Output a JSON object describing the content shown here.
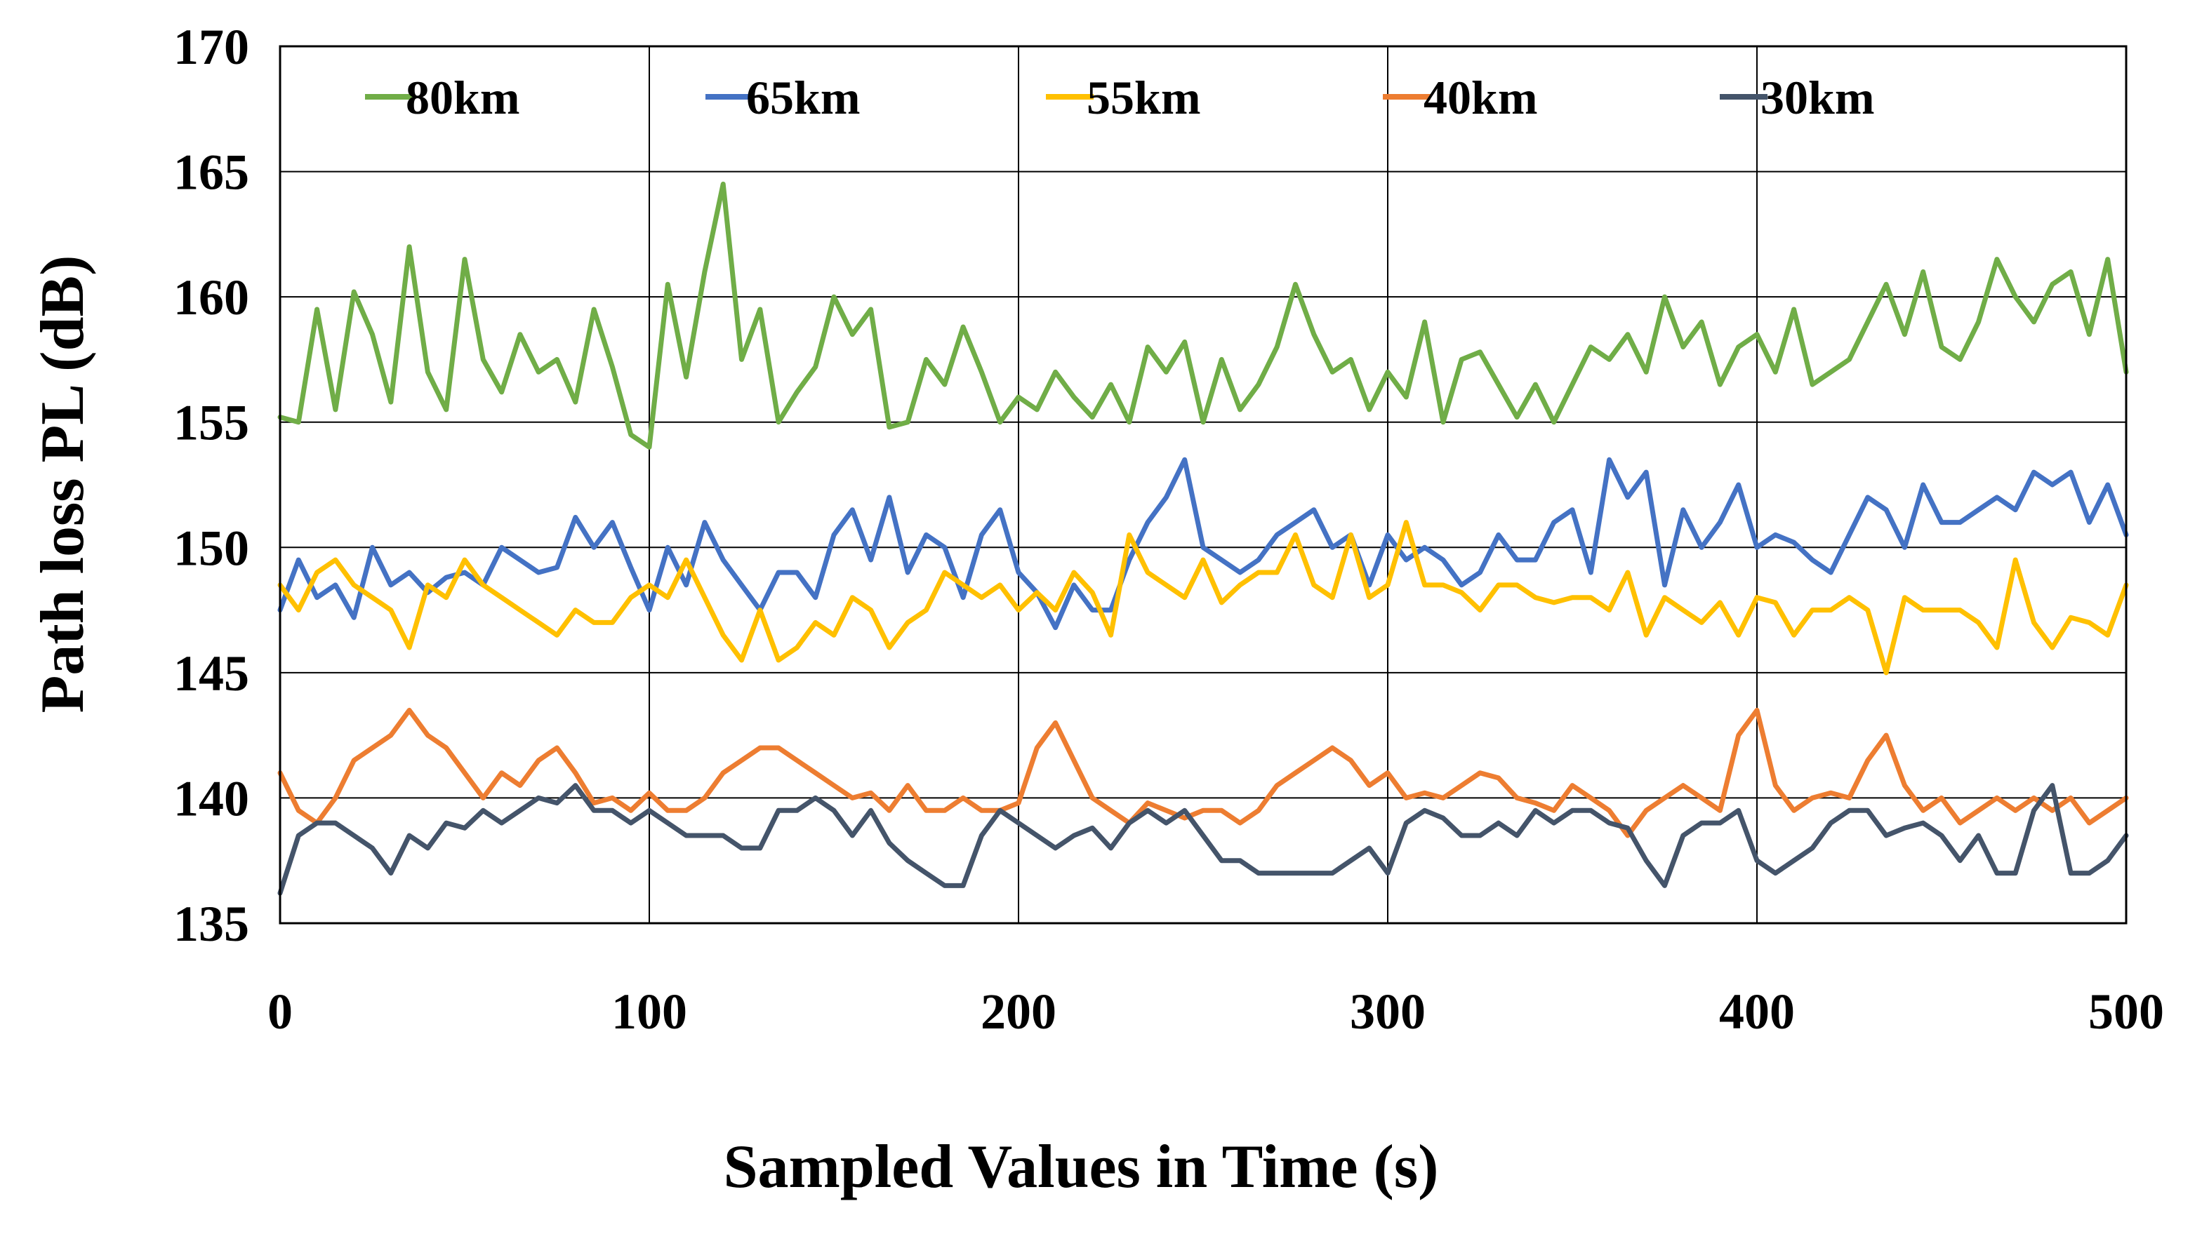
{
  "chart_data": {
    "type": "line",
    "title": "",
    "xlabel": "Sampled Values in Time (s)",
    "ylabel": "Path loss PL (dB)",
    "xlim": [
      0,
      500
    ],
    "ylim": [
      135,
      170
    ],
    "xticks": [
      0,
      100,
      200,
      300,
      400,
      500
    ],
    "yticks": [
      135,
      140,
      145,
      150,
      155,
      160,
      165,
      170
    ],
    "grid": true,
    "legend_position": "top",
    "sample_step": 5,
    "series": [
      {
        "name": "80km",
        "color": "#70AD47",
        "values": [
          155.2,
          155.0,
          159.5,
          155.5,
          160.2,
          158.5,
          155.8,
          162.0,
          157.0,
          155.5,
          161.5,
          157.5,
          156.2,
          158.5,
          157.0,
          157.5,
          155.8,
          159.5,
          157.2,
          154.5,
          154.0,
          160.5,
          156.8,
          161.0,
          164.5,
          157.5,
          159.5,
          155.0,
          156.2,
          157.2,
          160.0,
          158.5,
          159.5,
          154.8,
          155.0,
          157.5,
          156.5,
          158.8,
          157.0,
          155.0,
          156.0,
          155.5,
          157.0,
          156.0,
          155.2,
          156.5,
          155.0,
          158.0,
          157.0,
          158.2,
          155.0,
          157.5,
          155.5,
          156.5,
          158.0,
          160.5,
          158.5,
          157.0,
          157.5,
          155.5,
          157.0,
          156.0,
          159.0,
          155.0,
          157.5,
          157.8,
          156.5,
          155.2,
          156.5,
          155.0,
          156.5,
          158.0,
          157.5,
          158.5,
          157.0,
          160.0,
          158.0,
          159.0,
          156.5,
          158.0,
          158.5,
          157.0,
          159.5,
          156.5,
          157.0,
          157.5,
          159.0,
          160.5,
          158.5,
          161.0,
          158.0,
          157.5,
          159.0,
          161.5,
          160.0,
          159.0,
          160.5,
          161.0,
          158.5,
          161.5,
          157.0
        ]
      },
      {
        "name": "65km",
        "color": "#4472C4",
        "values": [
          147.5,
          149.5,
          148.0,
          148.5,
          147.2,
          150.0,
          148.5,
          149.0,
          148.2,
          148.8,
          149.0,
          148.5,
          150.0,
          149.5,
          149.0,
          149.2,
          151.2,
          150.0,
          151.0,
          149.2,
          147.5,
          150.0,
          148.5,
          151.0,
          149.5,
          148.5,
          147.5,
          149.0,
          149.0,
          148.0,
          150.5,
          151.5,
          149.5,
          152.0,
          149.0,
          150.5,
          150.0,
          148.0,
          150.5,
          151.5,
          149.0,
          148.2,
          146.8,
          148.5,
          147.5,
          147.5,
          149.5,
          151.0,
          152.0,
          153.5,
          150.0,
          149.5,
          149.0,
          149.5,
          150.5,
          151.0,
          151.5,
          150.0,
          150.5,
          148.5,
          150.5,
          149.5,
          150.0,
          149.5,
          148.5,
          149.0,
          150.5,
          149.5,
          149.5,
          151.0,
          151.5,
          149.0,
          153.5,
          152.0,
          153.0,
          148.5,
          151.5,
          150.0,
          151.0,
          152.5,
          150.0,
          150.5,
          150.2,
          149.5,
          149.0,
          150.5,
          152.0,
          151.5,
          150.0,
          152.5,
          151.0,
          151.0,
          151.5,
          152.0,
          151.5,
          153.0,
          152.5,
          153.0,
          151.0,
          152.5,
          150.5
        ]
      },
      {
        "name": "55km",
        "color": "#FFC000",
        "values": [
          148.5,
          147.5,
          149.0,
          149.5,
          148.5,
          148.0,
          147.5,
          146.0,
          148.5,
          148.0,
          149.5,
          148.5,
          148.0,
          147.5,
          147.0,
          146.5,
          147.5,
          147.0,
          147.0,
          148.0,
          148.5,
          148.0,
          149.5,
          148.0,
          146.5,
          145.5,
          147.5,
          145.5,
          146.0,
          147.0,
          146.5,
          148.0,
          147.5,
          146.0,
          147.0,
          147.5,
          149.0,
          148.5,
          148.0,
          148.5,
          147.5,
          148.2,
          147.5,
          149.0,
          148.2,
          146.5,
          150.5,
          149.0,
          148.5,
          148.0,
          149.5,
          147.8,
          148.5,
          149.0,
          149.0,
          150.5,
          148.5,
          148.0,
          150.5,
          148.0,
          148.5,
          151.0,
          148.5,
          148.5,
          148.2,
          147.5,
          148.5,
          148.5,
          148.0,
          147.8,
          148.0,
          148.0,
          147.5,
          149.0,
          146.5,
          148.0,
          147.5,
          147.0,
          147.8,
          146.5,
          148.0,
          147.8,
          146.5,
          147.5,
          147.5,
          148.0,
          147.5,
          145.0,
          148.0,
          147.5,
          147.5,
          147.5,
          147.0,
          146.0,
          149.5,
          147.0,
          146.0,
          147.2,
          147.0,
          146.5,
          148.5
        ]
      },
      {
        "name": "40km",
        "color": "#ED7D31",
        "values": [
          141.0,
          139.5,
          139.0,
          140.0,
          141.5,
          142.0,
          142.5,
          143.5,
          142.5,
          142.0,
          141.0,
          140.0,
          141.0,
          140.5,
          141.5,
          142.0,
          141.0,
          139.8,
          140.0,
          139.5,
          140.2,
          139.5,
          139.5,
          140.0,
          141.0,
          141.5,
          142.0,
          142.0,
          141.5,
          141.0,
          140.5,
          140.0,
          140.2,
          139.5,
          140.5,
          139.5,
          139.5,
          140.0,
          139.5,
          139.5,
          139.8,
          142.0,
          143.0,
          141.5,
          140.0,
          139.5,
          139.0,
          139.8,
          139.5,
          139.2,
          139.5,
          139.5,
          139.0,
          139.5,
          140.5,
          141.0,
          141.5,
          142.0,
          141.5,
          140.5,
          141.0,
          140.0,
          140.2,
          140.0,
          140.5,
          141.0,
          140.8,
          140.0,
          139.8,
          139.5,
          140.5,
          140.0,
          139.5,
          138.5,
          139.5,
          140.0,
          140.5,
          140.0,
          139.5,
          142.5,
          143.5,
          140.5,
          139.5,
          140.0,
          140.2,
          140.0,
          141.5,
          142.5,
          140.5,
          139.5,
          140.0,
          139.0,
          139.5,
          140.0,
          139.5,
          140.0,
          139.5,
          140.0,
          139.0,
          139.5,
          140.0
        ]
      },
      {
        "name": "30km",
        "color": "#44546A",
        "values": [
          136.2,
          138.5,
          139.0,
          139.0,
          138.5,
          138.0,
          137.0,
          138.5,
          138.0,
          139.0,
          138.8,
          139.5,
          139.0,
          139.5,
          140.0,
          139.8,
          140.5,
          139.5,
          139.5,
          139.0,
          139.5,
          139.0,
          138.5,
          138.5,
          138.5,
          138.0,
          138.0,
          139.5,
          139.5,
          140.0,
          139.5,
          138.5,
          139.5,
          138.2,
          137.5,
          137.0,
          136.5,
          136.5,
          138.5,
          139.5,
          139.0,
          138.5,
          138.0,
          138.5,
          138.8,
          138.0,
          139.0,
          139.5,
          139.0,
          139.5,
          138.5,
          137.5,
          137.5,
          137.0,
          137.0,
          137.0,
          137.0,
          137.0,
          137.5,
          138.0,
          137.0,
          139.0,
          139.5,
          139.2,
          138.5,
          138.5,
          139.0,
          138.5,
          139.5,
          139.0,
          139.5,
          139.5,
          139.0,
          138.8,
          137.5,
          136.5,
          138.5,
          139.0,
          139.0,
          139.5,
          137.5,
          137.0,
          137.5,
          138.0,
          139.0,
          139.5,
          139.5,
          138.5,
          138.8,
          139.0,
          138.5,
          137.5,
          138.5,
          137.0,
          137.0,
          139.5,
          140.5,
          137.0,
          137.0,
          137.5,
          138.5
        ]
      }
    ]
  }
}
